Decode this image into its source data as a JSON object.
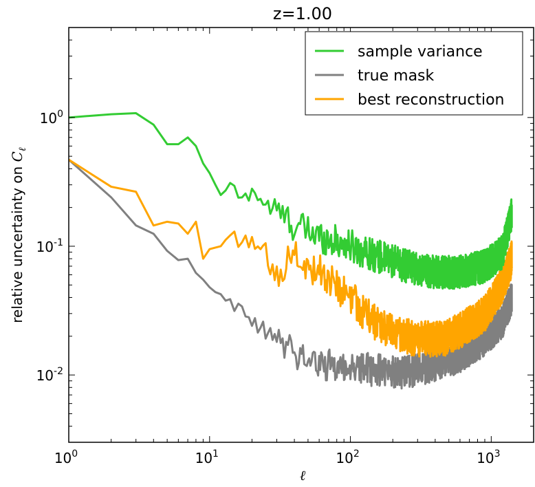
{
  "chart_data": {
    "type": "line",
    "title": "z=1.00",
    "xlabel": "ℓ",
    "ylabel_text": "relative uncertainty on ",
    "ylabel_symbol": "C",
    "ylabel_subscript": "ℓ",
    "xscale": "log",
    "yscale": "log",
    "xlim": [
      1,
      2000
    ],
    "ylim": [
      0.003,
      5
    ],
    "grid": false,
    "legend_position": "top-right",
    "x_ticks": [
      {
        "base": "10",
        "exp": "0",
        "value": 1
      },
      {
        "base": "10",
        "exp": "1",
        "value": 10
      },
      {
        "base": "10",
        "exp": "2",
        "value": 100
      },
      {
        "base": "10",
        "exp": "3",
        "value": 1000
      }
    ],
    "y_ticks": [
      {
        "base": "10",
        "exp": "-2",
        "value": 0.01
      },
      {
        "base": "10",
        "exp": "-1",
        "value": 0.1
      },
      {
        "base": "10",
        "exp": "0",
        "value": 1
      }
    ],
    "series": [
      {
        "name": "sample variance",
        "color": "#33cc33",
        "anchors": [
          [
            1,
            1.0
          ],
          [
            2,
            1.06
          ],
          [
            3,
            1.08
          ],
          [
            4,
            0.88
          ],
          [
            5,
            0.62
          ],
          [
            6,
            0.62
          ],
          [
            7,
            0.7
          ],
          [
            8,
            0.6
          ],
          [
            9,
            0.44
          ],
          [
            10,
            0.37
          ],
          [
            11,
            0.3
          ],
          [
            12,
            0.25
          ],
          [
            13,
            0.25
          ],
          [
            14,
            0.33
          ],
          [
            15,
            0.27
          ],
          [
            17,
            0.22
          ],
          [
            20,
            0.28
          ],
          [
            25,
            0.21
          ],
          [
            30,
            0.19
          ],
          [
            40,
            0.145
          ],
          [
            60,
            0.12
          ],
          [
            100,
            0.1
          ],
          [
            150,
            0.085
          ],
          [
            250,
            0.07
          ],
          [
            400,
            0.063
          ],
          [
            600,
            0.063
          ],
          [
            900,
            0.07
          ],
          [
            1200,
            0.09
          ],
          [
            1400,
            0.18
          ]
        ],
        "noise": 0.13
      },
      {
        "name": "true mask",
        "color": "#808080",
        "anchors": [
          [
            1,
            0.47
          ],
          [
            2,
            0.24
          ],
          [
            3,
            0.145
          ],
          [
            4,
            0.125
          ],
          [
            5,
            0.092
          ],
          [
            6,
            0.078
          ],
          [
            7,
            0.08
          ],
          [
            8,
            0.062
          ],
          [
            9,
            0.055
          ],
          [
            10,
            0.048
          ],
          [
            11,
            0.044
          ],
          [
            13,
            0.041
          ],
          [
            15,
            0.033
          ],
          [
            17,
            0.03
          ],
          [
            20,
            0.025
          ],
          [
            25,
            0.021
          ],
          [
            30,
            0.019
          ],
          [
            40,
            0.015
          ],
          [
            60,
            0.012
          ],
          [
            100,
            0.0115
          ],
          [
            150,
            0.011
          ],
          [
            250,
            0.0105
          ],
          [
            400,
            0.012
          ],
          [
            600,
            0.014
          ],
          [
            900,
            0.019
          ],
          [
            1200,
            0.026
          ],
          [
            1400,
            0.04
          ]
        ],
        "noise": 0.13
      },
      {
        "name": "best reconstruction",
        "color": "#ffa500",
        "anchors": [
          [
            1,
            0.47
          ],
          [
            2,
            0.29
          ],
          [
            3,
            0.265
          ],
          [
            4,
            0.145
          ],
          [
            5,
            0.155
          ],
          [
            6,
            0.15
          ],
          [
            7,
            0.125
          ],
          [
            8,
            0.155
          ],
          [
            9,
            0.08
          ],
          [
            10,
            0.095
          ],
          [
            12,
            0.1
          ],
          [
            14,
            0.13
          ],
          [
            16,
            0.1
          ],
          [
            20,
            0.11
          ],
          [
            25,
            0.085
          ],
          [
            30,
            0.06
          ],
          [
            35,
            0.075
          ],
          [
            40,
            0.08
          ],
          [
            60,
            0.065
          ],
          [
            80,
            0.05
          ],
          [
            100,
            0.04
          ],
          [
            140,
            0.027
          ],
          [
            200,
            0.021
          ],
          [
            300,
            0.019
          ],
          [
            450,
            0.019
          ],
          [
            600,
            0.022
          ],
          [
            900,
            0.03
          ],
          [
            1200,
            0.05
          ],
          [
            1400,
            0.08
          ]
        ],
        "noise": 0.14
      }
    ]
  }
}
